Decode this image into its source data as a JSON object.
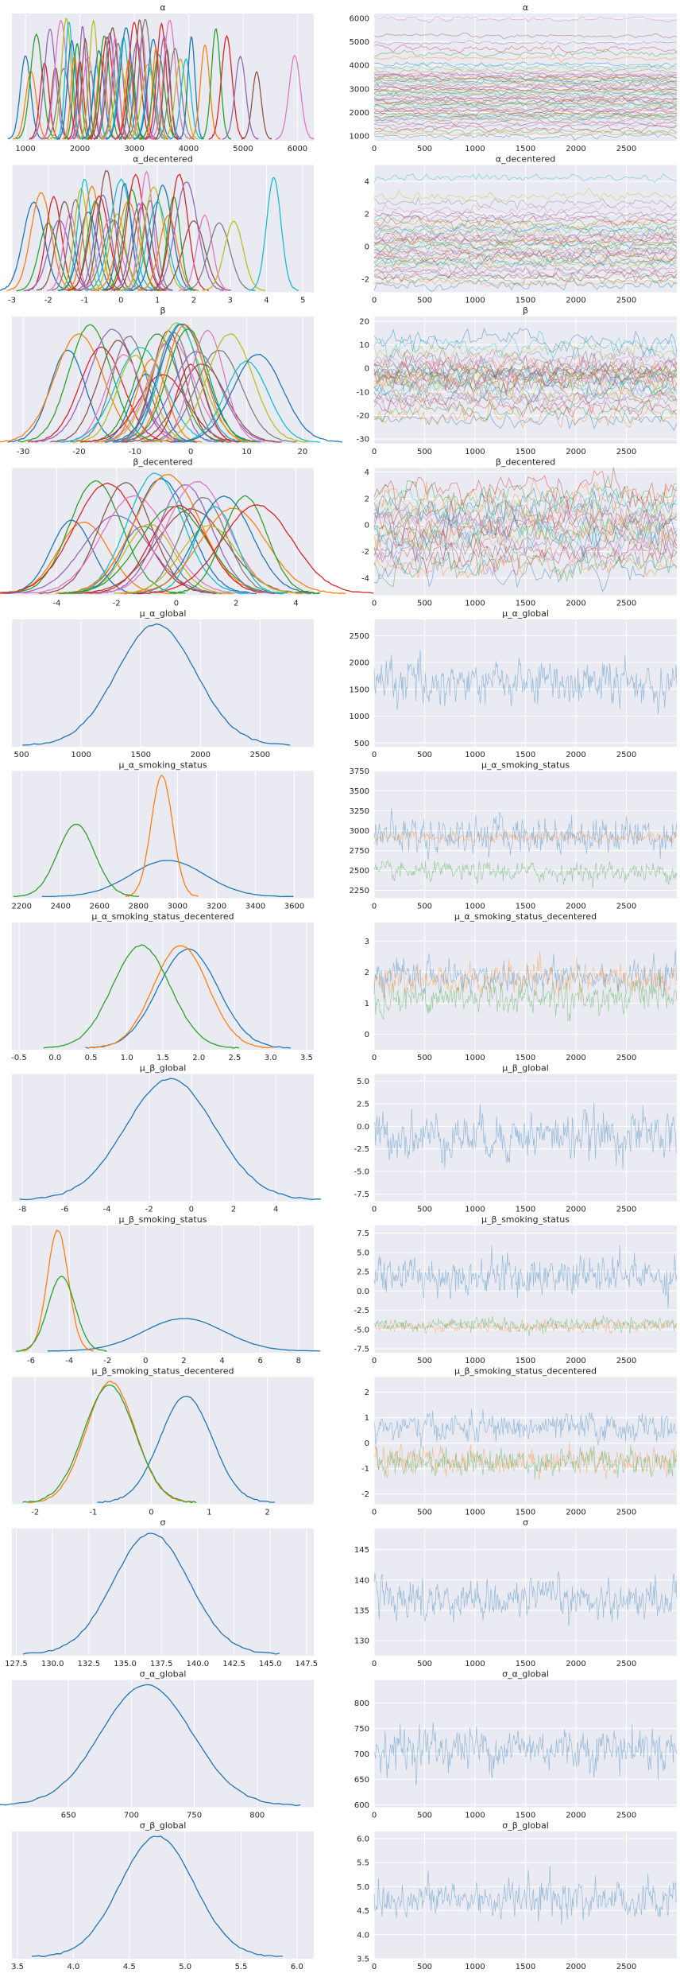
{
  "chart_data": {
    "type": "line",
    "grid": true,
    "rows": [
      {
        "name": "α",
        "left": {
          "xlim": [
            750,
            6300
          ],
          "xticks": [
            1000,
            2000,
            3000,
            4000,
            5000,
            6000
          ],
          "kde": {
            "kind": "many",
            "centers": [
              1000,
              1100,
              1200,
              1350,
              1450,
              1550,
              1650,
              1700,
              1750,
              1800,
              1850,
              1900,
              1950,
              2000,
              2050,
              2100,
              2150,
              2200,
              2250,
              2300,
              2350,
              2400,
              2450,
              2500,
              2550,
              2600,
              2650,
              2700,
              2750,
              2800,
              2850,
              2900,
              2950,
              3000,
              3050,
              3100,
              3150,
              3200,
              3250,
              3300,
              3350,
              3400,
              3450,
              3500,
              3550,
              3600,
              3650,
              3750,
              3850,
              3950,
              4050,
              4300,
              4500,
              4700,
              4950,
              5250,
              5950
            ],
            "sd": 80
          }
        },
        "right": {
          "ylim": [
            800,
            6200
          ],
          "yticks": [
            1000,
            2000,
            3000,
            4000,
            5000,
            6000
          ],
          "trace": {
            "kind": "many",
            "centers": [
              1000,
              1100,
              1200,
              1350,
              1450,
              1550,
              1650,
              1700,
              1750,
              1800,
              1850,
              1900,
              1950,
              2000,
              2050,
              2100,
              2150,
              2200,
              2250,
              2300,
              2350,
              2400,
              2450,
              2500,
              2550,
              2600,
              2650,
              2700,
              2750,
              2800,
              2850,
              2900,
              2950,
              3000,
              3050,
              3100,
              3150,
              3200,
              3250,
              3300,
              3350,
              3400,
              3450,
              3500,
              3550,
              3600,
              3650,
              3750,
              3850,
              3950,
              4050,
              4300,
              4500,
              4700,
              4950,
              5250,
              5950
            ],
            "sd": 80
          }
        }
      },
      {
        "name": "α_decentered",
        "left": {
          "xlim": [
            -3,
            5.3
          ],
          "xticks": [
            -3,
            -2,
            -1,
            0,
            1,
            2,
            3,
            4,
            5
          ],
          "kde": {
            "kind": "many",
            "centers": [
              -2.4,
              -2.2,
              -2.0,
              -1.85,
              -1.7,
              -1.55,
              -1.4,
              -1.25,
              -1.1,
              -1.0,
              -0.9,
              -0.8,
              -0.7,
              -0.6,
              -0.5,
              -0.4,
              -0.3,
              -0.2,
              -0.1,
              0.0,
              0.1,
              0.2,
              0.3,
              0.4,
              0.5,
              0.6,
              0.7,
              0.8,
              0.9,
              1.0,
              1.15,
              1.3,
              1.45,
              1.6,
              1.8,
              2.0,
              2.3,
              2.7,
              3.1,
              4.2
            ],
            "sd": 0.22
          }
        },
        "right": {
          "ylim": [
            -2.8,
            5
          ],
          "yticks": [
            -2,
            0,
            2,
            4
          ],
          "trace": {
            "kind": "many",
            "centers": [
              -2.4,
              -2.2,
              -2.0,
              -1.85,
              -1.7,
              -1.55,
              -1.4,
              -1.25,
              -1.1,
              -1.0,
              -0.9,
              -0.8,
              -0.7,
              -0.6,
              -0.5,
              -0.4,
              -0.3,
              -0.2,
              -0.1,
              0.0,
              0.1,
              0.2,
              0.3,
              0.4,
              0.5,
              0.6,
              0.7,
              0.8,
              0.9,
              1.0,
              1.15,
              1.3,
              1.45,
              1.6,
              1.8,
              2.0,
              2.3,
              2.7,
              3.1,
              4.2
            ],
            "sd": 0.22
          }
        }
      },
      {
        "name": "β",
        "left": {
          "xlim": [
            -32,
            22
          ],
          "xticks": [
            -30,
            -20,
            -10,
            0,
            10,
            20
          ],
          "kde": {
            "kind": "many",
            "centers": [
              -22,
              -20,
              -18,
              -16,
              -14,
              -13,
              -12,
              -11,
              -10,
              -9,
              -8,
              -7,
              -6,
              -5,
              -4.5,
              -4,
              -3.5,
              -3,
              -2.5,
              -2,
              -1.5,
              -1,
              -0.5,
              0,
              1,
              2,
              3,
              5,
              7,
              10,
              12
            ],
            "sd": 3.2
          }
        },
        "right": {
          "ylim": [
            -32,
            22
          ],
          "yticks": [
            -30,
            -20,
            -10,
            0,
            10,
            20
          ],
          "trace": {
            "kind": "many",
            "centers": [
              -22,
              -20,
              -18,
              -16,
              -14,
              -13,
              -12,
              -11,
              -10,
              -9,
              -8,
              -7,
              -6,
              -5,
              -4.5,
              -4,
              -3.5,
              -3,
              -2.5,
              -2,
              -1.5,
              -1,
              -0.5,
              0,
              1,
              2,
              3,
              5,
              7,
              10,
              12
            ],
            "sd": 3.2
          }
        }
      },
      {
        "name": "β_decentered",
        "left": {
          "xlim": [
            -5.5,
            4.6
          ],
          "xticks": [
            -4,
            -2,
            0,
            2,
            4
          ],
          "kde": {
            "kind": "many",
            "centers": [
              -3.5,
              -3.1,
              -2.7,
              -2.3,
              -2.0,
              -1.7,
              -1.4,
              -1.1,
              -0.9,
              -0.7,
              -0.5,
              -0.3,
              -0.1,
              0.1,
              0.3,
              0.5,
              0.7,
              0.9,
              1.1,
              1.3,
              1.6,
              1.9,
              2.3,
              2.7
            ],
            "sd": 0.85
          }
        },
        "right": {
          "ylim": [
            -5.3,
            4.3
          ],
          "yticks": [
            -4,
            -2,
            0,
            2,
            4
          ],
          "trace": {
            "kind": "many",
            "centers": [
              -3.5,
              -3.1,
              -2.7,
              -2.3,
              -2.0,
              -1.7,
              -1.4,
              -1.1,
              -0.9,
              -0.7,
              -0.5,
              -0.3,
              -0.1,
              0.1,
              0.3,
              0.5,
              0.7,
              0.9,
              1.1,
              1.3,
              1.6,
              1.9,
              2.3,
              2.7
            ],
            "sd": 0.85
          }
        }
      },
      {
        "name": "μ_α_global",
        "left": {
          "xlim": [
            420,
            2950
          ],
          "xticks": [
            500,
            1000,
            1500,
            2000,
            2500
          ],
          "kde": {
            "kind": "series",
            "series": [
              {
                "mean": 1630,
                "sd": 330,
                "amp": 1.0
              }
            ]
          }
        },
        "right": {
          "ylim": [
            430,
            2800
          ],
          "yticks": [
            500,
            1000,
            1500,
            2000,
            2500
          ],
          "trace": {
            "kind": "series",
            "series": [
              {
                "mean": 1630,
                "sd": 330
              }
            ]
          }
        }
      },
      {
        "name": "μ_α_smoking_status",
        "left": {
          "xlim": [
            2150,
            3700
          ],
          "xticks": [
            2200,
            2400,
            2600,
            2800,
            3000,
            3200,
            3400,
            3600
          ],
          "kde": {
            "kind": "series",
            "series": [
              {
                "mean": 2950,
                "sd": 190,
                "amp": 0.3
              },
              {
                "mean": 2920,
                "sd": 55,
                "amp": 1.0
              },
              {
                "mean": 2480,
                "sd": 95,
                "amp": 0.6
              }
            ]
          }
        },
        "right": {
          "ylim": [
            2150,
            3750
          ],
          "yticks": [
            2250,
            2500,
            2750,
            3000,
            3250,
            3500,
            3750
          ],
          "trace": {
            "kind": "series",
            "series": [
              {
                "mean": 2950,
                "sd": 190
              },
              {
                "mean": 2920,
                "sd": 55
              },
              {
                "mean": 2480,
                "sd": 95
              }
            ]
          }
        }
      },
      {
        "name": "μ_α_smoking_status_decentered",
        "left": {
          "xlim": [
            -0.6,
            3.6
          ],
          "xticks": [
            -0.5,
            0.0,
            0.5,
            1.0,
            1.5,
            2.0,
            2.5,
            3.0,
            3.5
          ],
          "kde": {
            "kind": "series",
            "series": [
              {
                "mean": 1.85,
                "sd": 0.42,
                "amp": 0.82
              },
              {
                "mean": 1.75,
                "sd": 0.38,
                "amp": 0.85
              },
              {
                "mean": 1.2,
                "sd": 0.4,
                "amp": 0.85
              }
            ]
          }
        },
        "right": {
          "ylim": [
            -0.5,
            3.6
          ],
          "yticks": [
            0,
            1,
            2,
            3
          ],
          "trace": {
            "kind": "series",
            "series": [
              {
                "mean": 1.85,
                "sd": 0.42
              },
              {
                "mean": 1.75,
                "sd": 0.38
              },
              {
                "mean": 1.2,
                "sd": 0.4
              }
            ]
          }
        }
      },
      {
        "name": "μ_β_global",
        "left": {
          "xlim": [
            -8.5,
            5.8
          ],
          "xticks": [
            -8,
            -6,
            -4,
            -2,
            0,
            2,
            4
          ],
          "kde": {
            "kind": "series",
            "series": [
              {
                "mean": -1.0,
                "sd": 2.1,
                "amp": 1.0
              }
            ]
          }
        },
        "right": {
          "ylim": [
            -8.3,
            5.8
          ],
          "yticks": [
            -7.5,
            -5.0,
            -2.5,
            0.0,
            2.5,
            5.0
          ],
          "trace": {
            "kind": "series",
            "series": [
              {
                "mean": -1.0,
                "sd": 2.1
              }
            ]
          }
        }
      },
      {
        "name": "μ_β_smoking_status",
        "left": {
          "xlim": [
            -7,
            8.8
          ],
          "xticks": [
            -6,
            -4,
            -2,
            0,
            2,
            4,
            6,
            8
          ],
          "kde": {
            "kind": "series",
            "series": [
              {
                "mean": 2.0,
                "sd": 2.1,
                "amp": 0.27
              },
              {
                "mean": -4.6,
                "sd": 0.55,
                "amp": 1.0
              },
              {
                "mean": -4.4,
                "sd": 0.7,
                "amp": 0.62
              }
            ]
          }
        },
        "right": {
          "ylim": [
            -8,
            8.5
          ],
          "yticks": [
            -7.5,
            -5.0,
            -2.5,
            0.0,
            2.5,
            5.0,
            7.5
          ],
          "trace": {
            "kind": "series",
            "series": [
              {
                "mean": 2.0,
                "sd": 2.1
              },
              {
                "mean": -4.6,
                "sd": 0.55
              },
              {
                "mean": -4.4,
                "sd": 0.7
              }
            ]
          }
        }
      },
      {
        "name": "μ_β_smoking_status_decentered",
        "left": {
          "xlim": [
            -2.4,
            2.8
          ],
          "xticks": [
            -2,
            -1,
            0,
            1,
            2
          ],
          "kde": {
            "kind": "series",
            "series": [
              {
                "mean": 0.6,
                "sd": 0.45,
                "amp": 0.88
              },
              {
                "mean": -0.7,
                "sd": 0.42,
                "amp": 1.0
              },
              {
                "mean": -0.72,
                "sd": 0.44,
                "amp": 0.97
              }
            ]
          }
        },
        "right": {
          "ylim": [
            -2.4,
            2.6
          ],
          "yticks": [
            -2,
            -1,
            0,
            1,
            2
          ],
          "trace": {
            "kind": "series",
            "series": [
              {
                "mean": 0.6,
                "sd": 0.45
              },
              {
                "mean": -0.7,
                "sd": 0.42
              },
              {
                "mean": -0.72,
                "sd": 0.44
              }
            ]
          }
        }
      },
      {
        "name": "σ",
        "left": {
          "xlim": [
            127.2,
            148
          ],
          "xticks": [
            127.5,
            130.0,
            132.5,
            135.0,
            137.5,
            140.0,
            142.5,
            145.0,
            147.5
          ],
          "kde": {
            "kind": "series",
            "series": [
              {
                "mean": 136.8,
                "sd": 2.6,
                "amp": 1.0
              }
            ]
          }
        },
        "right": {
          "ylim": [
            127.5,
            148.5
          ],
          "yticks": [
            130,
            135,
            140,
            145
          ],
          "trace": {
            "kind": "series",
            "series": [
              {
                "mean": 136.8,
                "sd": 2.6
              }
            ]
          }
        }
      },
      {
        "name": "σ_α_global",
        "left": {
          "xlim": [
            605,
            845
          ],
          "xticks": [
            650,
            700,
            750,
            800
          ],
          "kde": {
            "kind": "series",
            "series": [
              {
                "mean": 712,
                "sd": 36,
                "amp": 1.0
              }
            ]
          }
        },
        "right": {
          "ylim": [
            595,
            845
          ],
          "yticks": [
            600,
            650,
            700,
            750,
            800
          ],
          "trace": {
            "kind": "series",
            "series": [
              {
                "mean": 712,
                "sd": 36
              }
            ]
          }
        }
      },
      {
        "name": "σ_β_global",
        "left": {
          "xlim": [
            3.45,
            6.15
          ],
          "xticks": [
            3.5,
            4.0,
            4.5,
            5.0,
            5.5,
            6.0
          ],
          "kde": {
            "kind": "series",
            "series": [
              {
                "mean": 4.75,
                "sd": 0.33,
                "amp": 1.0
              }
            ]
          }
        },
        "right": {
          "ylim": [
            3.5,
            6.15
          ],
          "yticks": [
            3.5,
            4.0,
            4.5,
            5.0,
            5.5,
            6.0
          ],
          "trace": {
            "kind": "series",
            "series": [
              {
                "mean": 4.75,
                "sd": 0.33
              }
            ]
          }
        }
      }
    ],
    "trace_xlim": [
      0,
      3000
    ],
    "trace_xticks": [
      0,
      500,
      1000,
      1500,
      2000,
      2500
    ],
    "palette": [
      "#1f77b4",
      "#ff7f0e",
      "#2ca02c",
      "#d62728",
      "#9467bd",
      "#8c564b",
      "#e377c2",
      "#7f7f7f",
      "#bcbd22",
      "#17becf"
    ],
    "trace_palette": [
      "#1f77b4",
      "#ff7f0e",
      "#2ca02c"
    ]
  }
}
